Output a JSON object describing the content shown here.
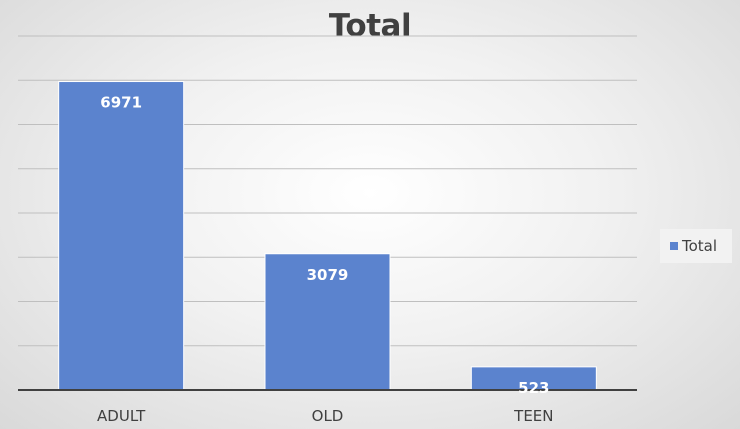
{
  "chart_data": {
    "type": "bar",
    "title": "Total",
    "categories": [
      "ADULT",
      "OLD",
      "TEEN"
    ],
    "series": [
      {
        "name": "Total",
        "values": [
          6971,
          3079,
          523
        ]
      }
    ],
    "ylim": [
      0,
      8000
    ],
    "y_gridline_step": 1000,
    "y_tick_labels_shown": false,
    "grid": true,
    "data_labels": true,
    "legend": "right",
    "xlabel": "",
    "ylabel": ""
  },
  "colors": {
    "bar": "#5B83CE",
    "bar_border": "#ffffff",
    "gridline": "#bfbfbf",
    "axis": "#404040",
    "data_label": "#ffffff",
    "tick_label": "#404040"
  }
}
